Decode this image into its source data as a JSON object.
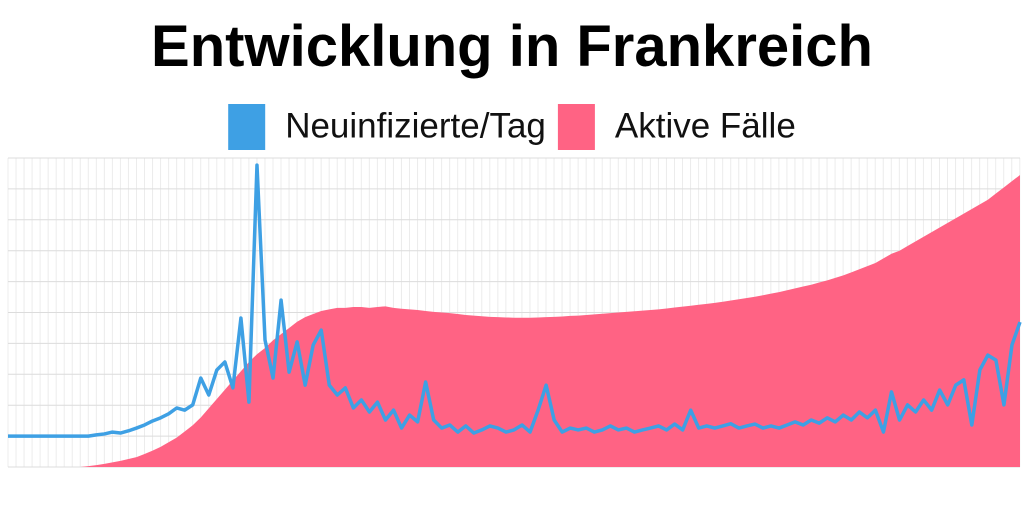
{
  "chart_data": {
    "type": "line",
    "title": "Entwicklung in Frankreich",
    "ylim": [
      0,
      100
    ],
    "grid": true,
    "series": [
      {
        "name": "Neuinfizierte/Tag",
        "color": "#3ea0e4",
        "type": "line",
        "values": [
          10,
          10,
          10,
          10,
          10,
          10,
          10,
          10,
          10,
          10,
          10,
          10.4,
          10.7,
          11.3,
          11,
          11.7,
          12.6,
          13.6,
          14.9,
          15.9,
          17.2,
          19.1,
          18.4,
          20.1,
          28.8,
          23.3,
          31.4,
          34,
          25.6,
          48.2,
          21,
          97.7,
          41.1,
          28.8,
          54,
          30.7,
          40.5,
          26.5,
          39.5,
          44.3,
          26.5,
          23.3,
          25.6,
          19.1,
          21.7,
          17.8,
          21,
          15.2,
          18.4,
          12.6,
          16.8,
          14.6,
          27.5,
          15.2,
          12.6,
          13.6,
          11.3,
          13.3,
          11,
          12,
          13.3,
          12.6,
          11.3,
          12,
          13.6,
          11.3,
          18.4,
          26.5,
          15.2,
          11.3,
          12.6,
          12,
          12.6,
          11.3,
          12,
          13.3,
          12,
          12.6,
          11.3,
          12,
          12.6,
          13.3,
          12,
          13.9,
          12,
          18.4,
          12.6,
          13.3,
          12.6,
          13.3,
          14,
          12.6,
          13.3,
          13.9,
          12.6,
          13.3,
          12.6,
          13.6,
          14.6,
          13.6,
          15.2,
          14.2,
          15.9,
          14.6,
          16.8,
          15.2,
          17.8,
          15.9,
          18.4,
          11.3,
          24.3,
          15.2,
          20.1,
          17.8,
          21.7,
          18.4,
          24.9,
          20.1,
          26.5,
          28.2,
          13.6,
          31.4,
          36.2,
          34.6,
          20.1,
          39.5,
          46.9
        ]
      },
      {
        "name": "Aktive Fälle",
        "color": "#ff6384",
        "type": "area",
        "values": [
          0,
          0,
          0,
          0,
          0,
          0,
          0,
          0,
          0,
          0,
          0.3,
          0.6,
          1,
          1.5,
          2,
          2.6,
          3.2,
          4.2,
          5.3,
          6.5,
          8,
          9.5,
          11.5,
          13.5,
          16,
          19,
          22,
          25,
          28,
          31,
          34,
          36.5,
          38.5,
          41,
          43,
          45,
          47,
          48.5,
          49.5,
          50.5,
          51,
          51.5,
          51.5,
          51.8,
          51.8,
          51.5,
          51.8,
          52,
          51.5,
          51.2,
          51,
          50.8,
          50.5,
          50.2,
          50,
          49.8,
          49.5,
          49.2,
          49,
          48.8,
          48.6,
          48.5,
          48.4,
          48.3,
          48.3,
          48.3,
          48.4,
          48.5,
          48.6,
          48.7,
          48.9,
          49,
          49.2,
          49.4,
          49.6,
          49.8,
          50,
          50.2,
          50.4,
          50.6,
          50.8,
          51,
          51.3,
          51.6,
          51.9,
          52.2,
          52.5,
          52.8,
          53.1,
          53.5,
          53.9,
          54.3,
          54.7,
          55.1,
          55.6,
          56.1,
          56.6,
          57.2,
          57.8,
          58.4,
          59,
          59.7,
          60.4,
          61.2,
          62,
          63,
          64,
          65,
          66,
          67.5,
          69,
          70,
          71.5,
          73,
          74.5,
          76,
          77.5,
          79,
          80.5,
          82,
          83.5,
          85,
          86.5,
          88.5,
          90.5,
          92.5,
          94.5
        ]
      }
    ]
  }
}
